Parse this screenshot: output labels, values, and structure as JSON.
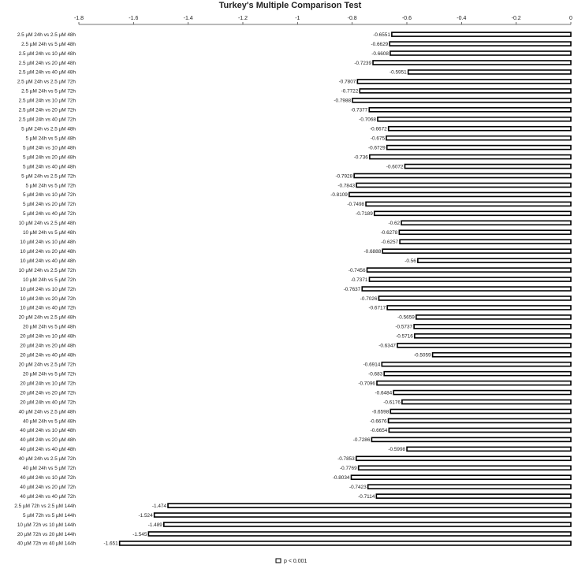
{
  "chart_data": {
    "type": "bar",
    "orientation": "horizontal",
    "title": "Turkey's Multiple Comparison Test",
    "xlabel": "",
    "ylabel": "",
    "xlim": [
      -1.8,
      0
    ],
    "xticks": [
      "-1.8",
      "-1.6",
      "-1.4",
      "-1.2",
      "-1",
      "-0.8",
      "-0.6",
      "-0.4",
      "-0.2",
      "0"
    ],
    "xtick_values": [
      -1.8,
      -1.6,
      -1.4,
      -1.2,
      -1,
      -0.8,
      -0.6,
      -0.4,
      -0.2,
      0
    ],
    "grid": false,
    "legend_position": "bottom-center",
    "bar_color": "#000000",
    "categories": [
      "2.5 µM 24h vs 2.5 µM 48h",
      "2.5 µM 24h vs 5 µM 48h",
      "2.5 µM 24h vs 10 µM 48h",
      "2.5 µM 24h vs 20 µM 48h",
      "2.5 µM 24h vs 40 µM 48h",
      "2.5 µM 24h vs 2.5 µM 72h",
      "2.5 µM 24h vs 5 µM 72h",
      "2.5 µM 24h vs 10 µM 72h",
      "2.5 µM 24h vs 20 µM 72h",
      "2.5 µM 24h vs 40 µM 72h",
      "5 µM 24h vs 2.5 µM 48h",
      "5 µM 24h vs 5 µM 48h",
      "5 µM 24h vs 10 µM 48h",
      "5 µM 24h vs 20 µM 48h",
      "5 µM 24h vs 40 µM 48h",
      "5 µM 24h vs 2.5 µM 72h",
      "5 µM 24h vs 5 µM 72h",
      "5 µM 24h vs 10 µM 72h",
      "5 µM 24h vs 20 µM 72h",
      "5 µM 24h vs 40 µM 72h",
      "10 µM 24h vs 2.5 µM 48h",
      "10 µM 24h vs 5 µM 48h",
      "10 µM 24h vs 10 µM 48h",
      "10 µM 24h vs 20 µM 48h",
      "10 µM 24h vs 40 µM 48h",
      "10 µM 24h vs 2.5 µM 72h",
      "10 µM 24h vs 5 µM 72h",
      "10 µM 24h vs 10 µM 72h",
      "10 µM 24h vs 20 µM 72h",
      "10 µM 24h vs 40 µM 72h",
      "20 µM 24h vs 2.5 µM 48h",
      "20 µM 24h vs 5 µM 48h",
      "20 µM 24h vs 10 µM 48h",
      "20 µM 24h vs 20 µM 48h",
      "20 µM 24h vs 40 µM 48h",
      "20 µM 24h vs 2.5 µM 72h",
      "20 µM 24h vs 5 µM 72h",
      "20 µM 24h vs 10 µM 72h",
      "20 µM 24h vs 20 µM 72h",
      "20 µM 24h vs 40 µM 72h",
      "40 µM 24h vs 2.5 µM 48h",
      "40 µM 24h vs 5 µM 48h",
      "40 µM 24h vs 10 µM 48h",
      "40 µM 24h vs 20 µM 48h",
      "40 µM 24h vs 40 µM 48h",
      "40 µM 24h vs 2.5 µM 72h",
      "40 µM 24h vs 5 µM 72h",
      "40 µM 24h vs 10 µM 72h",
      "40 µM 24h vs 20 µM 72h",
      "40 µM 24h vs 40 µM 72h",
      "2.5 µM 72h vs 2.5 µM 144h",
      "5 µM 72h vs 5 µM 144h",
      "10 µM 72h vs 10 µM 144h",
      "20 µM 72h vs 20 µM 144h",
      "40 µM 72h vs 40 µM 144h"
    ],
    "series": [
      {
        "name": "p < 0.001",
        "values": [
          -0.6551,
          -0.6629,
          -0.6608,
          -0.7239,
          -0.5951,
          -0.7807,
          -0.7722,
          -0.7988,
          -0.7377,
          -0.7068,
          -0.6672,
          -0.675,
          -0.6729,
          -0.736,
          -0.6072,
          -0.7928,
          -0.7843,
          -0.8109,
          -0.7498,
          -0.7189,
          -0.62,
          -0.6278,
          -0.6257,
          -0.6888,
          -0.56,
          -0.7456,
          -0.7371,
          -0.7637,
          -0.7026,
          -0.6717,
          -0.5659,
          -0.5737,
          -0.5716,
          -0.6347,
          -0.5059,
          -0.6914,
          -0.683,
          -0.7096,
          -0.6484,
          -0.6176,
          -0.6598,
          -0.6676,
          -0.6654,
          -0.7286,
          -0.5998,
          -0.7853,
          -0.7769,
          -0.8034,
          -0.7423,
          -0.7114,
          -1.474,
          -1.524,
          -1.489,
          -1.545,
          -1.651
        ],
        "labels": [
          "-0.6551",
          "-0.6629",
          "-0.6608",
          "-0.7239",
          "-0.5951",
          "-0.7807",
          "-0.7722",
          "-0.7988",
          "-0.7377",
          "-0.7068",
          "-0.6672",
          "-0.675",
          "-0.6729",
          "-0.736",
          "-0.6072",
          "-0.7928",
          "-0.7843",
          "-0.8109",
          "-0.7498",
          "-0.7189",
          "-0.62",
          "-0.6278",
          "-0.6257",
          "-0.6888",
          "-0.56",
          "-0.7456",
          "-0.7371",
          "-0.7637",
          "-0.7026",
          "-0.6717",
          "-0.5659",
          "-0.5737",
          "-0.5716",
          "-0.6347",
          "-0.5059",
          "-0.6914",
          "-0.683",
          "-0.7096",
          "-0.6484",
          "-0.6176",
          "-0.6598",
          "-0.6676",
          "-0.6654",
          "-0.7286",
          "-0.5998",
          "-0.7853",
          "-0.7769",
          "-0.8034",
          "-0.7423",
          "-0.7114",
          "-1.474",
          "-1.524",
          "-1.489",
          "-1.545",
          "-1.651"
        ]
      }
    ]
  }
}
